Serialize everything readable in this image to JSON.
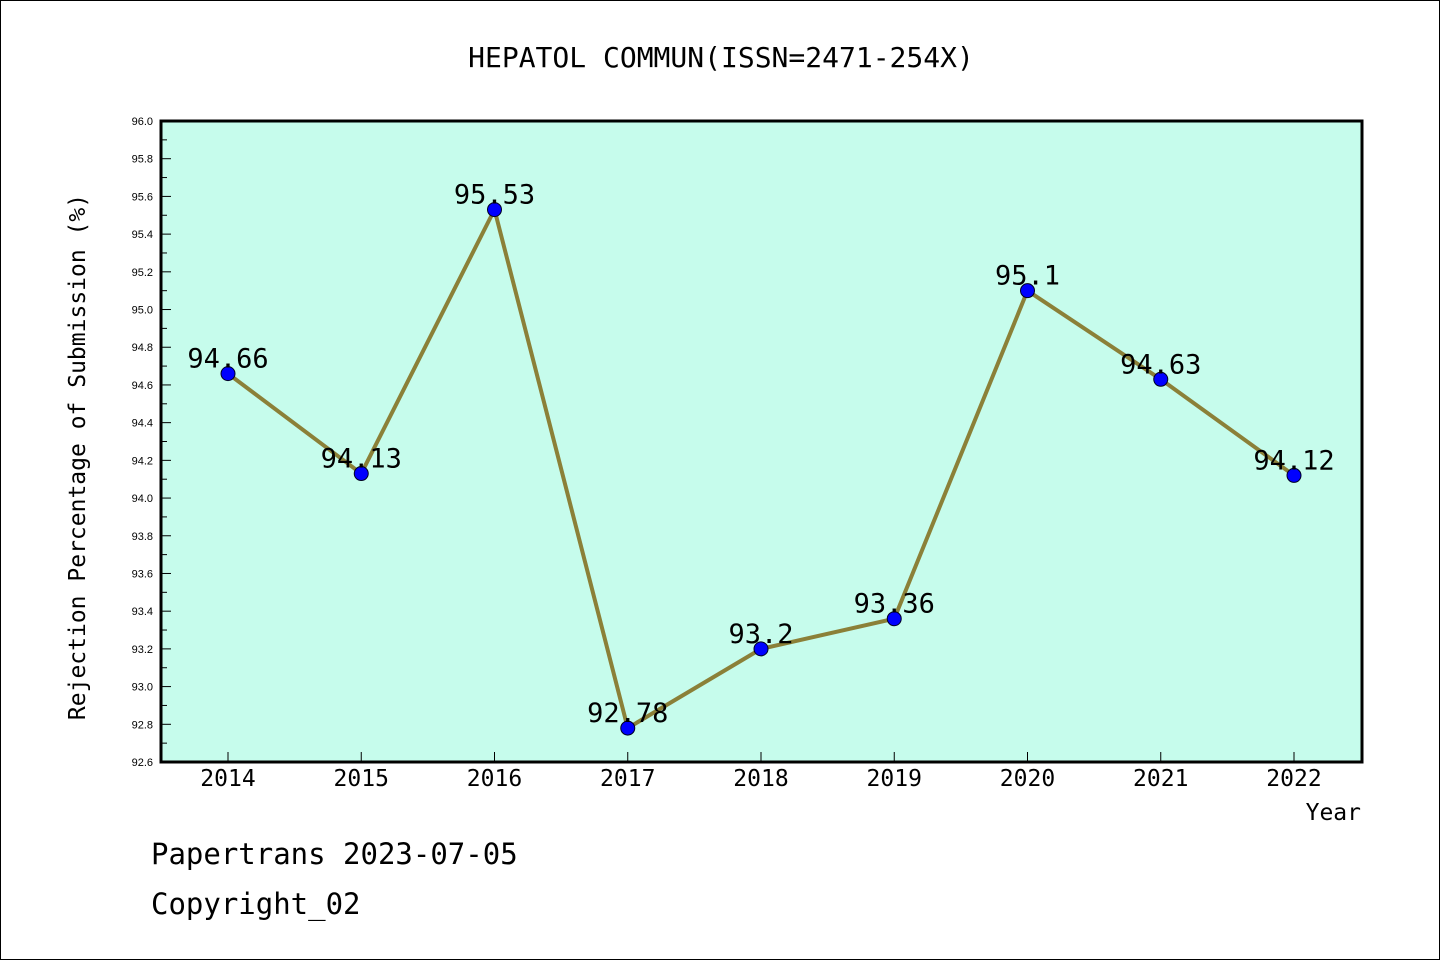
{
  "chart_data": {
    "type": "line",
    "title": "HEPATOL COMMUN(ISSN=2471-254X)",
    "xlabel": "Year",
    "ylabel": "Rejection Percentage of Submission (%)",
    "categories": [
      "2014",
      "2015",
      "2016",
      "2017",
      "2018",
      "2019",
      "2020",
      "2021",
      "2022"
    ],
    "series": [
      {
        "values": [
          94.66,
          94.13,
          95.53,
          92.78,
          93.2,
          93.36,
          95.1,
          94.63,
          94.12
        ],
        "labels": [
          "94.66",
          "94.13",
          "95.53",
          "92.78",
          "93.2",
          "93.36",
          "95.1",
          "94.63",
          "94.12"
        ]
      }
    ],
    "ylim": [
      92.6,
      96.0
    ],
    "yticks": [
      "92.6",
      "92.8",
      "93.0",
      "93.2",
      "93.4",
      "93.6",
      "93.8",
      "94.0",
      "94.2",
      "94.4",
      "94.6",
      "94.8",
      "95.0",
      "95.2",
      "95.4",
      "95.6",
      "95.8",
      "96.0"
    ],
    "grid": false,
    "colors": {
      "plot_background": "#c6fcec",
      "line": "#8b8038",
      "marker": "#0000ff"
    }
  },
  "footer": {
    "line1": "Papertrans 2023-07-05",
    "line2": "Copyright_02"
  }
}
